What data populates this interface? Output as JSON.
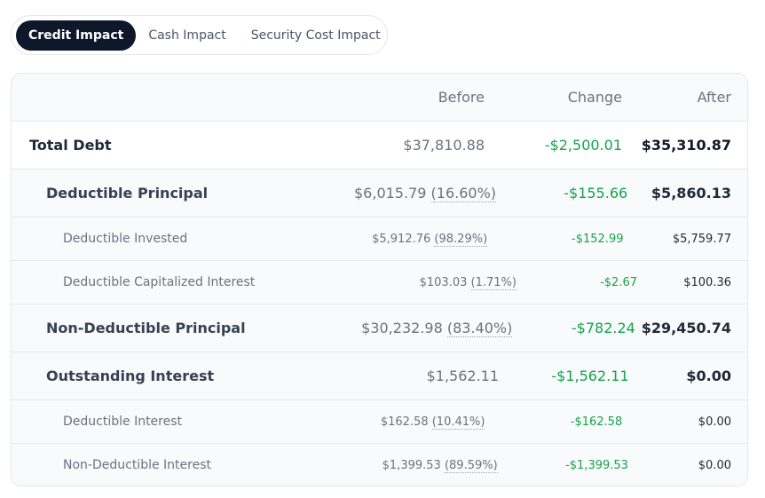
{
  "tabs": [
    {
      "label": "Credit Impact",
      "active": true
    },
    {
      "label": "Cash Impact",
      "active": false
    },
    {
      "label": "Security Cost Impact",
      "active": false
    }
  ],
  "table": {
    "headers": {
      "before": "Before",
      "change": "Change",
      "after": "After"
    },
    "rows": [
      {
        "label": "Total Debt",
        "before": "$37,810.88",
        "before_pct": "",
        "change": "-$2,500.01",
        "after": "$35,310.87"
      },
      {
        "label": "Deductible Principal",
        "before": "$6,015.79",
        "before_pct": "(16.60%)",
        "change": "-$155.66",
        "after": "$5,860.13"
      },
      {
        "label": "Deductible Invested",
        "before": "$5,912.76",
        "before_pct": "(98.29%)",
        "change": "-$152.99",
        "after": "$5,759.77"
      },
      {
        "label": "Deductible Capitalized Interest",
        "before": "$103.03",
        "before_pct": "(1.71%)",
        "change": "-$2.67",
        "after": "$100.36"
      },
      {
        "label": "Non-Deductible Principal",
        "before": "$30,232.98",
        "before_pct": "(83.40%)",
        "change": "-$782.24",
        "after": "$29,450.74"
      },
      {
        "label": "Outstanding Interest",
        "before": "$1,562.11",
        "before_pct": "",
        "change": "-$1,562.11",
        "after": "$0.00"
      },
      {
        "label": "Deductible Interest",
        "before": "$162.58",
        "before_pct": "(10.41%)",
        "change": "-$162.58",
        "after": "$0.00"
      },
      {
        "label": "Non-Deductible Interest",
        "before": "$1,399.53",
        "before_pct": "(89.59%)",
        "change": "-$1,399.53",
        "after": "$0.00"
      }
    ]
  },
  "colors": {
    "active_tab": "#0f172a",
    "positive_change": "#16a34a",
    "header_bg": "#f8fafc"
  }
}
